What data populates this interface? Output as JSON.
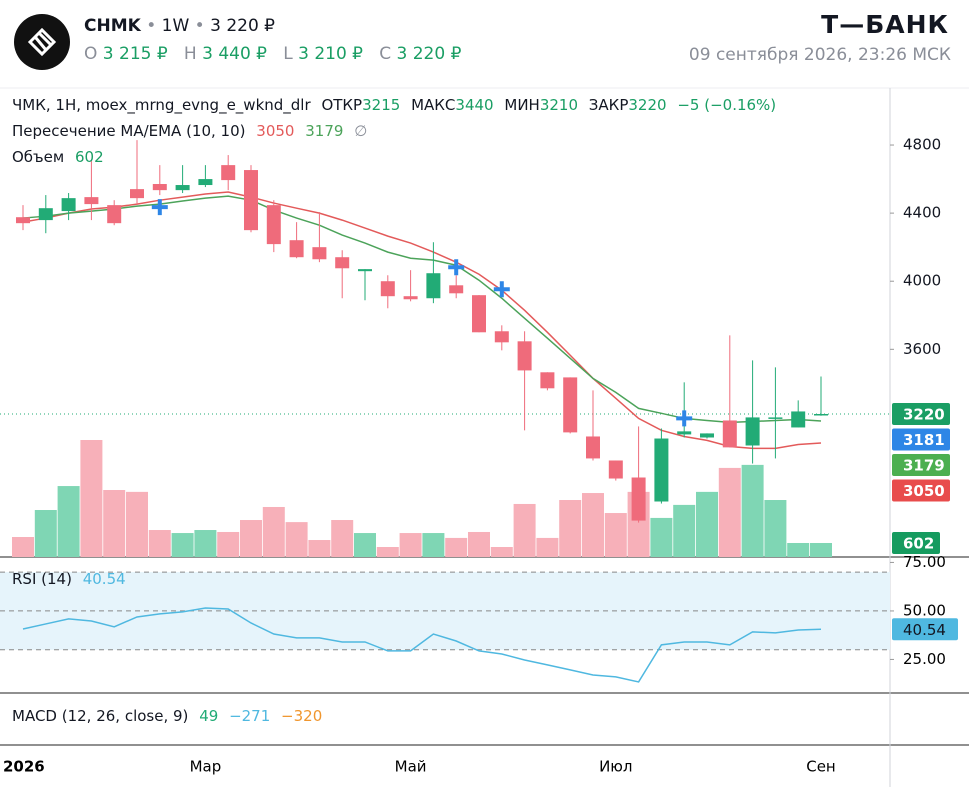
{
  "header": {
    "ticker": "CHMK",
    "interval": "1W",
    "price": "3 220 ₽",
    "ohlc": [
      {
        "key": "O",
        "value": "3 215 ₽"
      },
      {
        "key": "H",
        "value": "3 440 ₽"
      },
      {
        "key": "L",
        "value": "3 210 ₽"
      },
      {
        "key": "C",
        "value": "3 220 ₽"
      }
    ],
    "brand": "Т—БАНК",
    "datetime": "09 сентября 2026, 23:26 МСК"
  },
  "chart_data": {
    "type": "candlestick",
    "title": "ЧМК, 1H, moex_mrng_evng_e_wknd_dlr",
    "legend_labels": {
      "open": "ОТКР",
      "high": "МАКС",
      "low": "МИН",
      "close": "ЗАКР",
      "change": "−5 (−0.16%)"
    },
    "categories": [
      "2026",
      null,
      null,
      null,
      null,
      null,
      null,
      null,
      "Мар",
      null,
      null,
      null,
      null,
      null,
      null,
      null,
      null,
      "Май",
      null,
      null,
      null,
      null,
      null,
      null,
      null,
      null,
      "Июл",
      null,
      null,
      null,
      null,
      null,
      null,
      null,
      null,
      "Сен"
    ],
    "open": [
      4376,
      4359,
      4412,
      4494,
      4447,
      4541,
      4571,
      4535,
      4565,
      4682,
      4653,
      4447,
      4241,
      4200,
      4141,
      4059,
      4000,
      3912,
      3900,
      3976,
      3918,
      3706,
      3647,
      3465,
      3435,
      3088,
      2947,
      2847,
      2706,
      3100,
      3082,
      3182,
      3035,
      3194,
      3141,
      3215
    ],
    "high": [
      4447,
      4506,
      4518,
      4712,
      4476,
      4829,
      4682,
      4682,
      4682,
      4741,
      4682,
      4476,
      4347,
      4406,
      4182,
      4071,
      4035,
      4065,
      4229,
      4035,
      3918,
      3741,
      3706,
      3465,
      3435,
      3359,
      2947,
      3147,
      3135,
      3406,
      3106,
      3682,
      3535,
      3494,
      3300,
      3440
    ],
    "low": [
      4300,
      4282,
      4359,
      4359,
      4329,
      4447,
      4506,
      4518,
      4553,
      4535,
      4288,
      4171,
      4135,
      4112,
      3900,
      3888,
      3841,
      3882,
      3871,
      3900,
      3700,
      3594,
      3124,
      3359,
      3106,
      2947,
      2829,
      2582,
      2694,
      3082,
      3076,
      3024,
      2929,
      2959,
      3141,
      3210
    ],
    "close": [
      4341,
      4429,
      4488,
      4453,
      4341,
      4488,
      4535,
      4565,
      4600,
      4594,
      4300,
      4218,
      4141,
      4129,
      4076,
      4071,
      3912,
      3894,
      4047,
      3929,
      3700,
      3641,
      3476,
      3371,
      3112,
      2959,
      2841,
      2594,
      3076,
      3118,
      3106,
      3024,
      3200,
      3200,
      3235,
      3220
    ],
    "up_color": "#22ab76",
    "down_color": "#ef6b7b",
    "ylim": [
      2380,
      5135
    ],
    "yticks": [
      3600,
      4000,
      4400,
      4800
    ],
    "overlay": {
      "title": "Пересечение MA/EMA (10, 10)",
      "empty_symbol": "∅",
      "lines": [
        {
          "color": "#e35a5a",
          "values": [
            4347,
            4371,
            4400,
            4424,
            4435,
            4453,
            4476,
            4494,
            4512,
            4524,
            4494,
            4459,
            4429,
            4400,
            4359,
            4312,
            4265,
            4224,
            4171,
            4112,
            4041,
            3947,
            3829,
            3700,
            3565,
            3429,
            3312,
            3194,
            3124,
            3088,
            3065,
            3029,
            3018,
            3018,
            3041,
            3050
          ]
        },
        {
          "color": "#4ca35a",
          "values": [
            4371,
            4382,
            4400,
            4412,
            4424,
            4441,
            4453,
            4471,
            4488,
            4500,
            4476,
            4418,
            4371,
            4329,
            4271,
            4224,
            4171,
            4135,
            4124,
            4094,
            4006,
            3900,
            3782,
            3665,
            3547,
            3429,
            3347,
            3253,
            3224,
            3194,
            3182,
            3171,
            3176,
            3182,
            3188,
            3179
          ]
        }
      ],
      "crosses": {
        "color": "#2e86e6",
        "values": [
          null,
          null,
          null,
          null,
          null,
          null,
          4435,
          null,
          null,
          null,
          null,
          null,
          null,
          null,
          null,
          null,
          null,
          null,
          null,
          4082,
          null,
          3953,
          null,
          null,
          null,
          null,
          null,
          null,
          null,
          3194,
          null,
          null,
          null,
          null,
          null,
          null
        ]
      }
    },
    "price_labels": [
      {
        "value": 3181,
        "color": "#2e86e6"
      }
    ],
    "volume": {
      "title": "Объем",
      "up_color": "#7fd6b4",
      "down_color": "#f7b0b9",
      "values": [
        860,
        2020,
        3050,
        5030,
        2880,
        2800,
        1160,
        1030,
        1160,
        1075,
        1590,
        2150,
        1500,
        730,
        1590,
        1030,
        430,
        1030,
        1030,
        820,
        1075,
        430,
        2280,
        820,
        2450,
        2750,
        1890,
        2800,
        1680,
        2240,
        2800,
        3830,
        3960,
        2450,
        602,
        602
      ]
    },
    "rsi": {
      "title": "RSI (14)",
      "color": "#4fb8e0",
      "ylim": [
        7.7,
        77.8
      ],
      "yticks": [
        {
          "value": 75,
          "label": "75.00"
        },
        {
          "value": 50,
          "label": "50.00"
        },
        {
          "value": 25,
          "label": "25.00"
        }
      ],
      "levels": [
        70,
        50,
        30
      ],
      "values": [
        40.7,
        43.3,
        45.9,
        44.8,
        41.8,
        46.9,
        48.5,
        49.5,
        51.5,
        51,
        43.8,
        38.1,
        36.1,
        36.1,
        34,
        34,
        29.4,
        29.4,
        38.1,
        34.5,
        29.4,
        27.8,
        24.7,
        22.2,
        19.6,
        17,
        16,
        13.4,
        32.5,
        34,
        34,
        32.5,
        39.2,
        38.7,
        40.2,
        40.54
      ]
    },
    "macd": {
      "title": "MACD (12, 26, close, 9)",
      "values": [
        49,
        -271,
        -320
      ],
      "value_labels": [
        "49",
        "−271",
        "−320"
      ],
      "colors": [
        "#22ab76",
        "#4fb8e0",
        "#f0962e"
      ]
    }
  }
}
